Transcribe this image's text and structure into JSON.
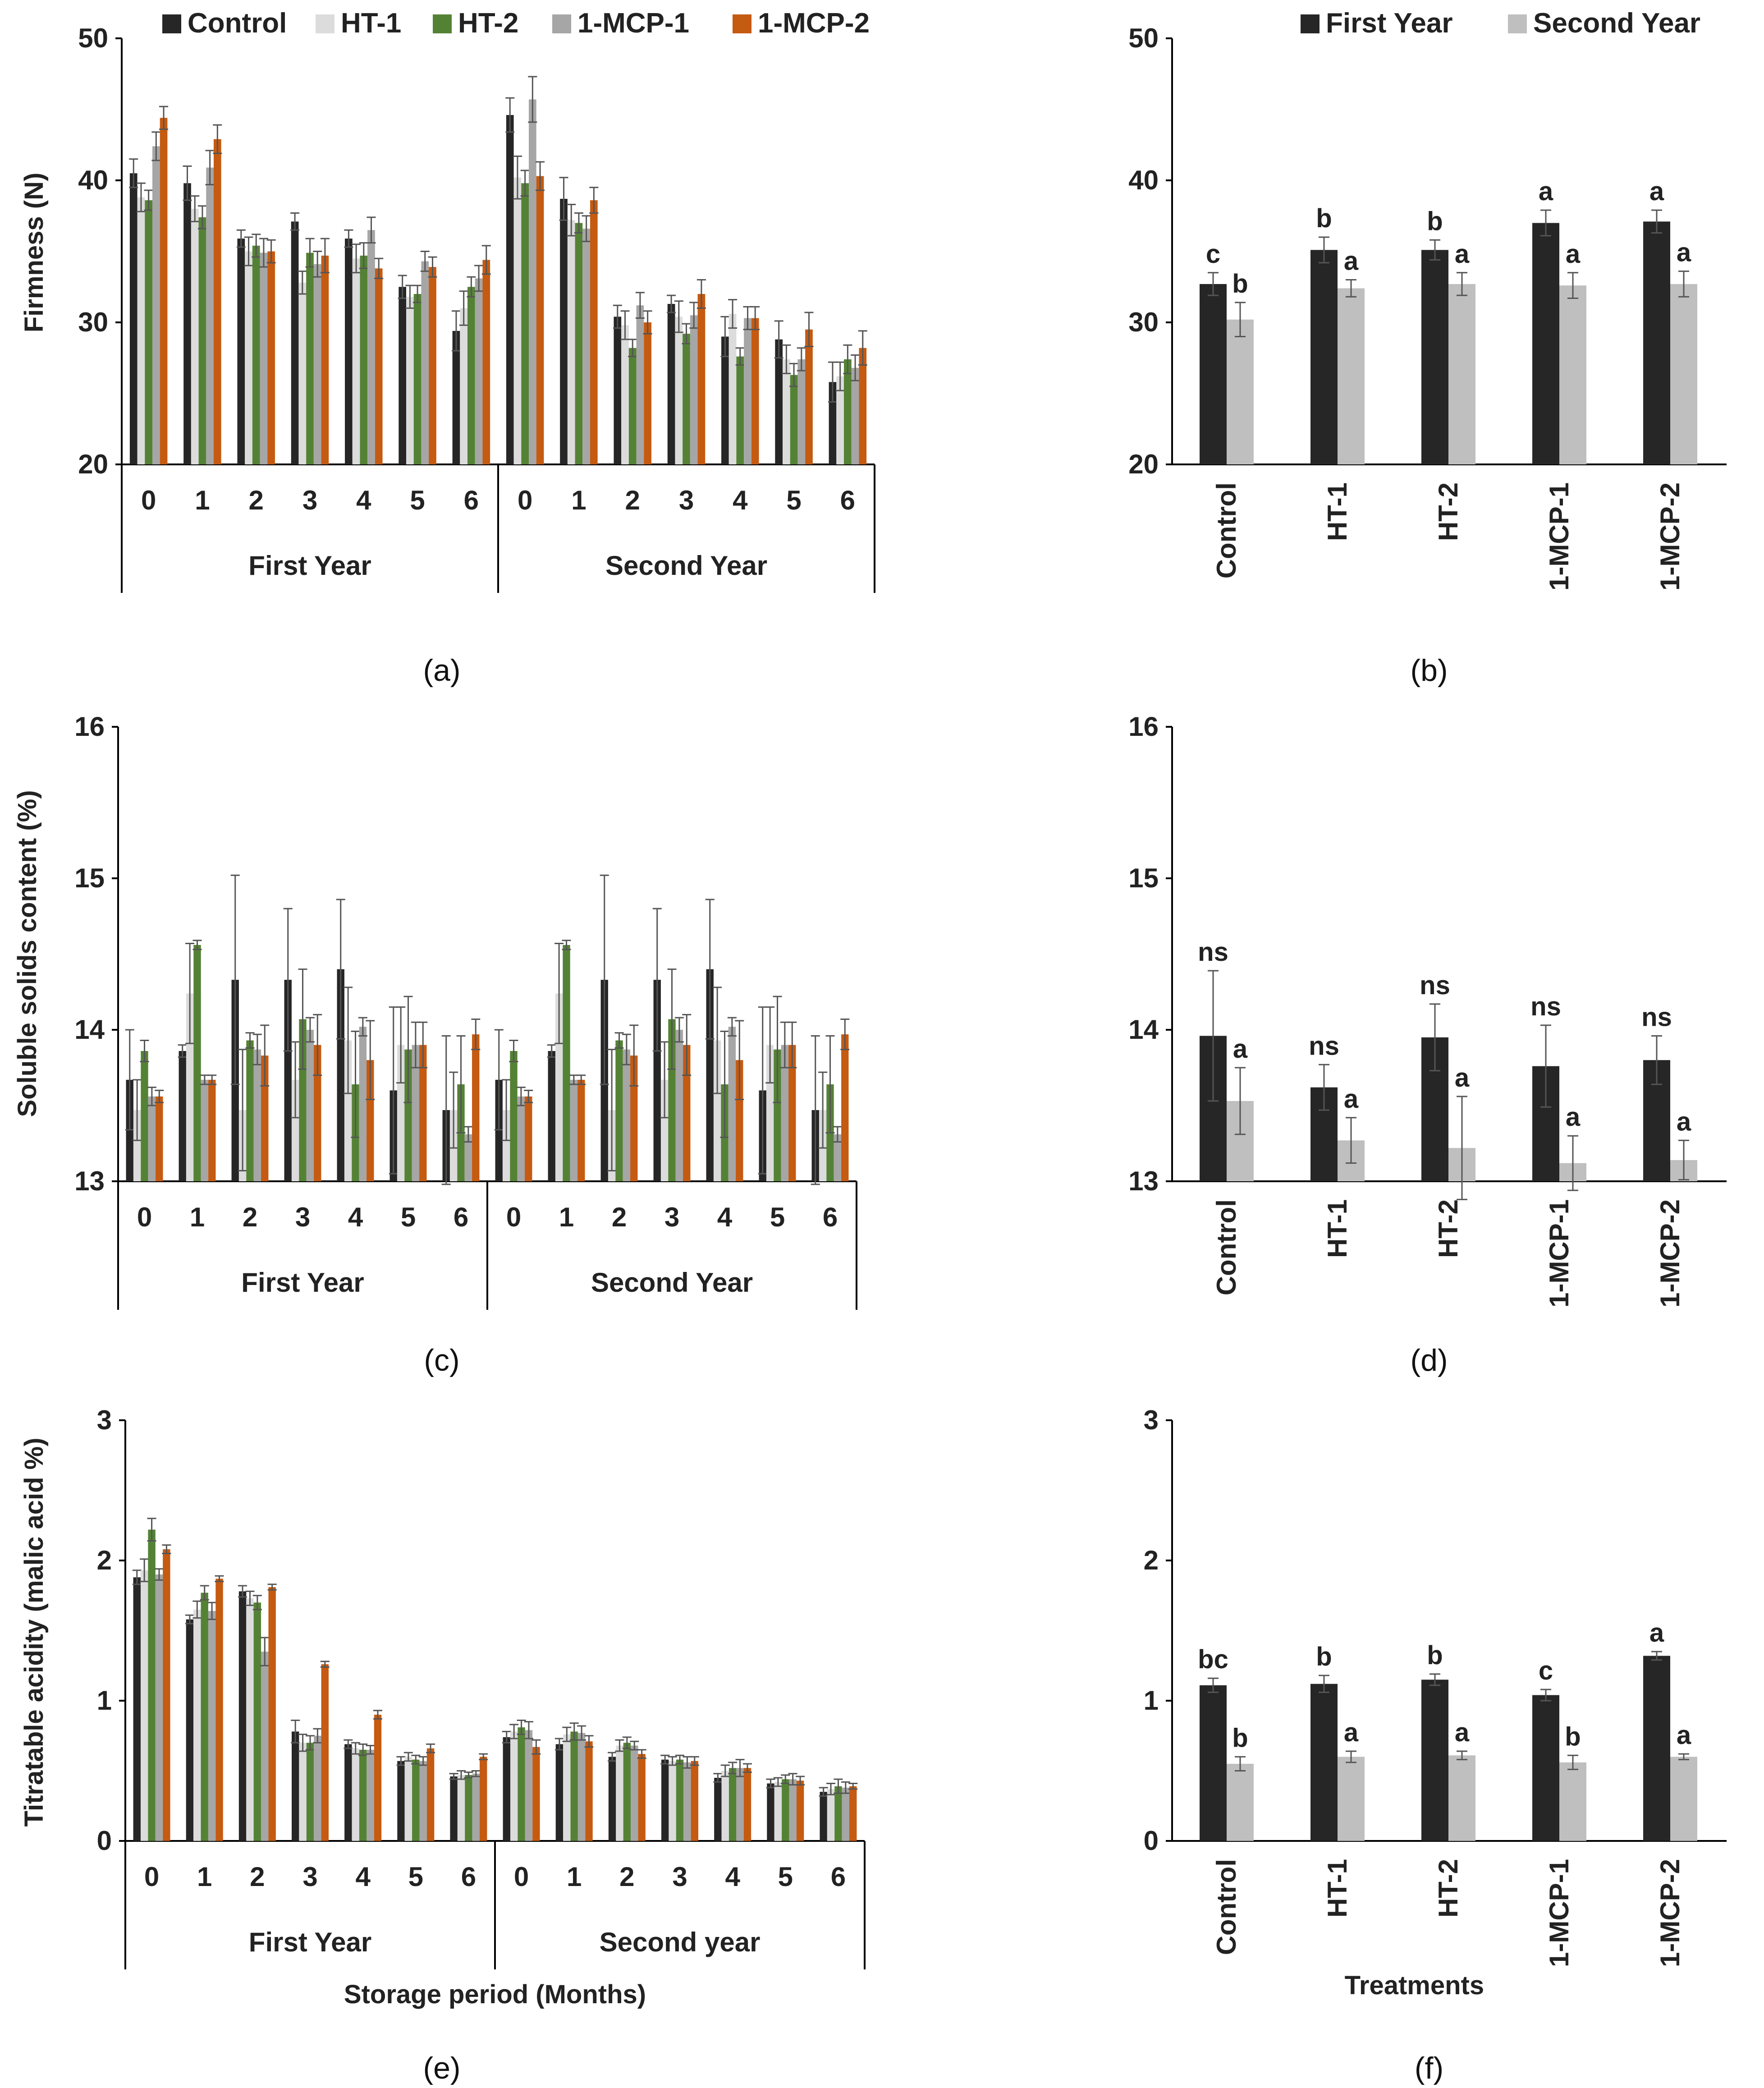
{
  "colors": {
    "Control": "#262626",
    "HT-1": "#dcdcdc",
    "HT-2": "#548235",
    "1-MCP-1": "#a6a6a6",
    "1-MCP-2": "#c55a11",
    "First Year": "#262626",
    "Second Year": "#bfbfbf"
  },
  "chart_data": [
    {
      "panel": "(a)",
      "type": "bar",
      "ylabel": "Firmness (N)",
      "ylim": [
        20,
        50
      ],
      "yticks": [
        "20",
        "30",
        "40",
        "50"
      ],
      "month_labels": [
        "0",
        "1",
        "2",
        "3",
        "4",
        "5",
        "6"
      ],
      "groups": [
        "First Year",
        "Second Year"
      ],
      "legend": [
        "Control",
        "HT-1",
        "HT-2",
        "1-MCP-1",
        "1-MCP-2"
      ],
      "legend_placement": "top",
      "series": [
        {
          "name": "Control",
          "values": [
            40.5,
            39.8,
            35.9,
            37.1,
            35.9,
            32.5,
            29.4,
            44.6,
            38.7,
            30.4,
            31.3,
            29.0,
            28.8,
            25.8
          ],
          "errors": [
            1.0,
            1.2,
            0.6,
            0.6,
            0.6,
            0.8,
            1.4,
            1.2,
            1.5,
            0.8,
            0.6,
            1.4,
            1.3,
            1.4
          ]
        },
        {
          "name": "HT-1",
          "values": [
            38.8,
            38.0,
            35.0,
            32.8,
            34.5,
            31.8,
            31.0,
            40.2,
            37.2,
            29.8,
            30.4,
            30.6,
            27.4,
            26.2
          ],
          "errors": [
            1.0,
            0.9,
            1.0,
            0.8,
            1.0,
            0.8,
            1.2,
            1.5,
            1.1,
            1.0,
            1.1,
            1.0,
            1.0,
            1.0
          ]
        },
        {
          "name": "HT-2",
          "values": [
            38.6,
            37.4,
            35.4,
            34.9,
            34.7,
            32.0,
            32.5,
            39.8,
            37.0,
            28.2,
            29.2,
            27.6,
            26.3,
            27.4
          ],
          "errors": [
            0.7,
            0.8,
            0.8,
            1.0,
            0.9,
            0.6,
            0.7,
            0.9,
            0.7,
            0.6,
            0.7,
            0.6,
            0.8,
            1.0
          ]
        },
        {
          "name": "1-MCP-1",
          "values": [
            42.4,
            40.9,
            34.9,
            34.1,
            36.5,
            34.3,
            33.1,
            45.7,
            36.6,
            31.2,
            30.5,
            30.3,
            27.4,
            26.8
          ],
          "errors": [
            1.0,
            1.2,
            1.0,
            0.9,
            0.9,
            0.7,
            0.9,
            1.6,
            0.9,
            0.9,
            0.9,
            0.8,
            0.8,
            0.9
          ]
        },
        {
          "name": "1-MCP-2",
          "values": [
            44.4,
            42.9,
            35.0,
            34.7,
            33.8,
            33.9,
            34.4,
            40.3,
            38.6,
            30.0,
            32.0,
            30.3,
            29.5,
            28.2
          ],
          "errors": [
            0.8,
            1.0,
            0.8,
            1.2,
            0.7,
            0.7,
            1.0,
            1.0,
            0.9,
            0.8,
            1.0,
            0.8,
            1.2,
            1.2
          ]
        }
      ]
    },
    {
      "panel": "(b)",
      "type": "bar",
      "ylim": [
        20,
        50
      ],
      "yticks": [
        "20",
        "30",
        "40",
        "50"
      ],
      "categories": [
        "Control",
        "HT-1",
        "HT-2",
        "1-MCP-1",
        "1-MCP-2"
      ],
      "legend": [
        "First Year",
        "Second Year"
      ],
      "legend_placement": "top",
      "series": [
        {
          "name": "First Year",
          "values": [
            32.7,
            35.1,
            35.1,
            37.0,
            37.1
          ],
          "errors": [
            0.8,
            0.9,
            0.7,
            0.9,
            0.8
          ],
          "labels": [
            "c",
            "b",
            "b",
            "a",
            "a"
          ]
        },
        {
          "name": "Second Year",
          "values": [
            30.2,
            32.4,
            32.7,
            32.6,
            32.7
          ],
          "errors": [
            1.2,
            0.6,
            0.8,
            0.9,
            0.9
          ],
          "labels": [
            "b",
            "a",
            "a",
            "a",
            "a"
          ]
        }
      ]
    },
    {
      "panel": "(c)",
      "type": "bar",
      "ylabel": "Soluble solids content (%)",
      "ylim": [
        13,
        16
      ],
      "yticks": [
        "13",
        "14",
        "15",
        "16"
      ],
      "month_labels": [
        "0",
        "1",
        "2",
        "3",
        "4",
        "5",
        "6"
      ],
      "groups": [
        "First Year",
        "Second Year"
      ],
      "series": [
        {
          "name": "Control",
          "values": [
            13.67,
            13.86,
            14.33,
            14.33,
            14.4,
            13.6,
            13.47,
            13.67,
            13.86,
            14.33,
            14.33,
            14.4,
            13.6,
            13.47
          ],
          "errors": [
            0.33,
            0.04,
            0.69,
            0.47,
            0.46,
            0.55,
            0.49,
            0.33,
            0.04,
            0.69,
            0.47,
            0.46,
            0.55,
            0.49
          ]
        },
        {
          "name": "HT-1",
          "values": [
            13.47,
            14.24,
            13.47,
            13.67,
            13.93,
            13.9,
            13.47,
            13.47,
            14.24,
            13.47,
            13.67,
            13.93,
            13.9,
            13.47
          ],
          "errors": [
            0.2,
            0.33,
            0.4,
            0.25,
            0.35,
            0.25,
            0.25,
            0.2,
            0.33,
            0.4,
            0.25,
            0.35,
            0.25,
            0.25
          ]
        },
        {
          "name": "HT-2",
          "values": [
            13.86,
            14.56,
            13.93,
            14.07,
            13.64,
            13.87,
            13.64,
            13.86,
            14.56,
            13.93,
            14.07,
            13.64,
            13.87,
            13.64
          ],
          "errors": [
            0.07,
            0.03,
            0.05,
            0.33,
            0.35,
            0.35,
            0.32,
            0.07,
            0.03,
            0.05,
            0.33,
            0.35,
            0.35,
            0.32
          ]
        },
        {
          "name": "1-MCP-1",
          "values": [
            13.56,
            13.67,
            13.87,
            14.0,
            14.02,
            13.9,
            13.31,
            13.56,
            13.67,
            13.87,
            14.0,
            14.02,
            13.9,
            13.31
          ],
          "errors": [
            0.06,
            0.03,
            0.1,
            0.08,
            0.06,
            0.15,
            0.05,
            0.06,
            0.03,
            0.1,
            0.08,
            0.06,
            0.15,
            0.05
          ]
        },
        {
          "name": "1-MCP-2",
          "values": [
            13.56,
            13.67,
            13.83,
            13.9,
            13.8,
            13.9,
            13.97,
            13.56,
            13.67,
            13.83,
            13.9,
            13.8,
            13.9,
            13.97
          ],
          "errors": [
            0.04,
            0.03,
            0.2,
            0.2,
            0.26,
            0.15,
            0.1,
            0.04,
            0.03,
            0.2,
            0.2,
            0.26,
            0.15,
            0.1
          ]
        }
      ]
    },
    {
      "panel": "(d)",
      "type": "bar",
      "ylim": [
        13,
        16
      ],
      "yticks": [
        "13",
        "14",
        "15",
        "16"
      ],
      "categories": [
        "Control",
        "HT-1",
        "HT-2",
        "1-MCP-1",
        "1-MCP-2"
      ],
      "series": [
        {
          "name": "First Year",
          "values": [
            13.96,
            13.62,
            13.95,
            13.76,
            13.8
          ],
          "errors": [
            0.43,
            0.15,
            0.22,
            0.27,
            0.16
          ],
          "labels": [
            "ns",
            "ns",
            "ns",
            "ns",
            "ns"
          ]
        },
        {
          "name": "Second Year",
          "values": [
            13.53,
            13.27,
            13.22,
            13.12,
            13.14
          ],
          "errors": [
            0.22,
            0.15,
            0.34,
            0.18,
            0.13
          ],
          "labels": [
            "a",
            "a",
            "a",
            "a",
            "a"
          ]
        }
      ]
    },
    {
      "panel": "(e)",
      "type": "bar",
      "ylabel": "Titratable acidity (malic acid %)",
      "xlabel": "Storage period (Months)",
      "ylim": [
        0,
        3
      ],
      "yticks": [
        "0",
        "1",
        "2",
        "3"
      ],
      "month_labels": [
        "0",
        "1",
        "2",
        "3",
        "4",
        "5",
        "6"
      ],
      "groups": [
        "First Year",
        "Second year"
      ],
      "series": [
        {
          "name": "Control",
          "values": [
            1.88,
            1.58,
            1.78,
            0.78,
            0.69,
            0.57,
            0.46,
            0.74,
            0.69,
            0.6,
            0.58,
            0.45,
            0.41,
            0.35
          ],
          "errors": [
            0.05,
            0.03,
            0.04,
            0.08,
            0.03,
            0.03,
            0.02,
            0.04,
            0.04,
            0.03,
            0.03,
            0.03,
            0.03,
            0.03
          ]
        },
        {
          "name": "HT-1",
          "values": [
            1.93,
            1.65,
            1.73,
            0.7,
            0.66,
            0.6,
            0.47,
            0.78,
            0.76,
            0.68,
            0.57,
            0.5,
            0.42,
            0.37
          ],
          "errors": [
            0.08,
            0.06,
            0.05,
            0.06,
            0.04,
            0.03,
            0.03,
            0.05,
            0.05,
            0.04,
            0.03,
            0.04,
            0.03,
            0.04
          ]
        },
        {
          "name": "HT-2",
          "values": [
            2.22,
            1.77,
            1.7,
            0.7,
            0.65,
            0.58,
            0.47,
            0.81,
            0.78,
            0.7,
            0.58,
            0.52,
            0.44,
            0.39
          ],
          "errors": [
            0.08,
            0.05,
            0.05,
            0.05,
            0.04,
            0.03,
            0.02,
            0.05,
            0.06,
            0.04,
            0.03,
            0.04,
            0.03,
            0.05
          ]
        },
        {
          "name": "1-MCP-1",
          "values": [
            1.9,
            1.64,
            1.35,
            0.75,
            0.65,
            0.57,
            0.48,
            0.79,
            0.77,
            0.68,
            0.56,
            0.52,
            0.44,
            0.38
          ],
          "errors": [
            0.04,
            0.06,
            0.1,
            0.05,
            0.03,
            0.03,
            0.02,
            0.06,
            0.05,
            0.03,
            0.04,
            0.06,
            0.04,
            0.04
          ]
        },
        {
          "name": "1-MCP-2",
          "values": [
            2.08,
            1.87,
            1.81,
            1.26,
            0.9,
            0.66,
            0.6,
            0.67,
            0.71,
            0.62,
            0.57,
            0.52,
            0.43,
            0.39
          ],
          "errors": [
            0.03,
            0.02,
            0.02,
            0.02,
            0.03,
            0.03,
            0.02,
            0.05,
            0.04,
            0.03,
            0.03,
            0.03,
            0.03,
            0.02
          ]
        }
      ]
    },
    {
      "panel": "(f)",
      "type": "bar",
      "xlabel": "Treatments",
      "ylim": [
        0,
        3
      ],
      "yticks": [
        "0",
        "1",
        "2",
        "3"
      ],
      "categories": [
        "Control",
        "HT-1",
        "HT-2",
        "1-MCP-1",
        "1-MCP-2"
      ],
      "series": [
        {
          "name": "First Year",
          "values": [
            1.11,
            1.12,
            1.15,
            1.04,
            1.32
          ],
          "errors": [
            0.05,
            0.06,
            0.04,
            0.04,
            0.03
          ],
          "labels": [
            "bc",
            "b",
            "b",
            "c",
            "a"
          ]
        },
        {
          "name": "Second Year",
          "values": [
            0.55,
            0.6,
            0.61,
            0.56,
            0.6
          ],
          "errors": [
            0.05,
            0.04,
            0.03,
            0.05,
            0.02
          ],
          "labels": [
            "b",
            "a",
            "a",
            "b",
            "a"
          ]
        }
      ]
    }
  ]
}
